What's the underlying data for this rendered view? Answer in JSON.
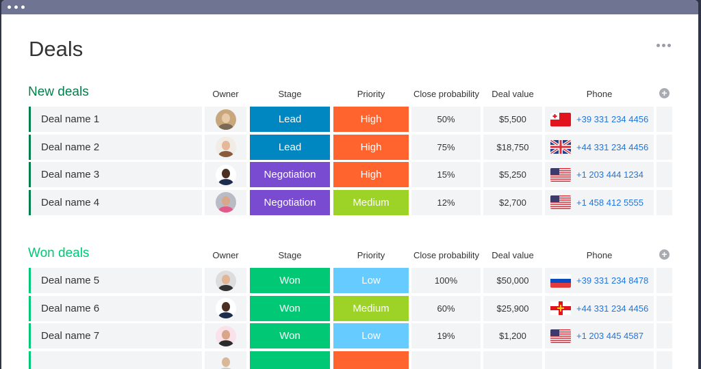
{
  "page": {
    "title": "Deals"
  },
  "columns": {
    "owner": "Owner",
    "stage": "Stage",
    "priority": "Priority",
    "close_probability": "Close probability",
    "deal_value": "Deal value",
    "phone": "Phone"
  },
  "colors": {
    "lead": "#0086c0",
    "negotiation": "#784bd1",
    "won": "#00c875",
    "high": "#ff642e",
    "medium": "#9cd326",
    "low": "#66ccff",
    "new_group": "#037f4c",
    "won_group": "#00c875"
  },
  "groups": [
    {
      "title": "New deals",
      "color": "#037f4c",
      "rows": [
        {
          "name": "Deal name 1",
          "owner_icon": "avatar-woman-blonde",
          "stage": "Lead",
          "stage_color": "#0086c0",
          "priority": "High",
          "priority_color": "#ff642e",
          "probability": "50%",
          "value": "$5,500",
          "flag": "tonga",
          "phone": "+39 331 234 4456"
        },
        {
          "name": "Deal name 2",
          "owner_icon": "avatar-woman-brown",
          "stage": "Lead",
          "stage_color": "#0086c0",
          "priority": "High",
          "priority_color": "#ff642e",
          "probability": "75%",
          "value": "$18,750",
          "flag": "uk",
          "phone": "+44 331 234 4456"
        },
        {
          "name": "Deal name 3",
          "owner_icon": "avatar-man-dark",
          "stage": "Negotiation",
          "stage_color": "#784bd1",
          "priority": "High",
          "priority_color": "#ff642e",
          "probability": "15%",
          "value": "$5,250",
          "flag": "usa",
          "phone": "+1 203 444 1234"
        },
        {
          "name": "Deal name 4",
          "owner_icon": "avatar-man-beard",
          "stage": "Negotiation",
          "stage_color": "#784bd1",
          "priority": "Medium",
          "priority_color": "#9cd326",
          "probability": "12%",
          "value": "$2,700",
          "flag": "usa",
          "phone": "+1 458 412 5555"
        }
      ]
    },
    {
      "title": "Won deals",
      "color": "#00c875",
      "rows": [
        {
          "name": "Deal name 5",
          "owner_icon": "avatar-man-light",
          "stage": "Won",
          "stage_color": "#00c875",
          "priority": "Low",
          "priority_color": "#66ccff",
          "probability": "100%",
          "value": "$50,000",
          "flag": "russia",
          "phone": "+39 331 234 8478"
        },
        {
          "name": "Deal name 6",
          "owner_icon": "avatar-man-dark",
          "stage": "Won",
          "stage_color": "#00c875",
          "priority": "Medium",
          "priority_color": "#9cd326",
          "probability": "60%",
          "value": "$25,900",
          "flag": "guernsey",
          "phone": "+44 331 234 4456"
        },
        {
          "name": "Deal name 7",
          "owner_icon": "avatar-woman-dark",
          "stage": "Won",
          "stage_color": "#00c875",
          "priority": "Low",
          "priority_color": "#66ccff",
          "probability": "19%",
          "value": "$1,200",
          "flag": "usa",
          "phone": "+1 203 445 4587"
        },
        {
          "name": "",
          "owner_icon": "avatar-partial",
          "stage": "",
          "stage_color": "#00c875",
          "priority": "",
          "priority_color": "#ff642e",
          "probability": "",
          "value": "",
          "flag": "",
          "phone": ""
        }
      ]
    }
  ]
}
